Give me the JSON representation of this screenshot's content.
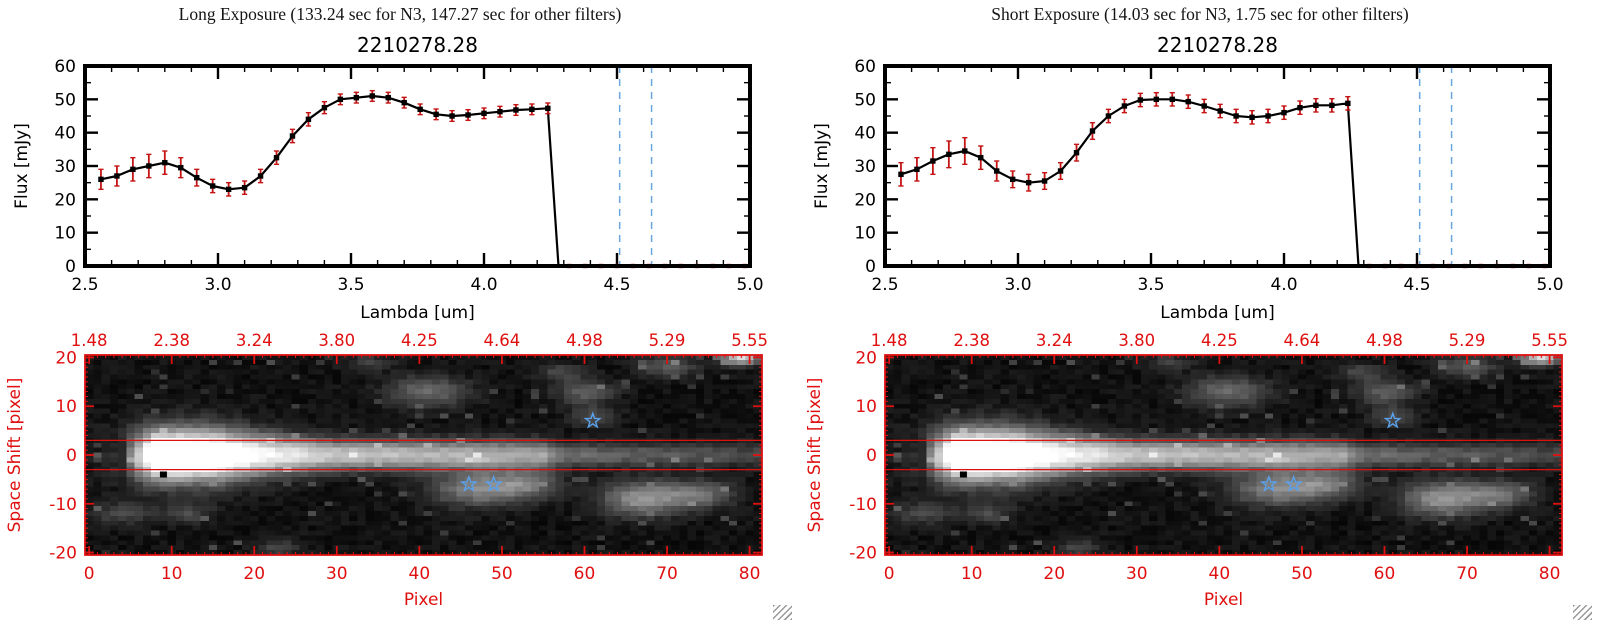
{
  "panels": [
    {
      "header": "Long Exposure (133.24 sec for N3, 147.27 sec for other filters)"
    },
    {
      "header": "Short Exposure (14.03 sec for N3, 1.75 sec for other filters)"
    }
  ],
  "chart_data": [
    {
      "type": "line",
      "panel": "long-exposure-spectrum",
      "title": "2210278.28",
      "xlabel": "Lambda [um]",
      "ylabel": "Flux [mJy]",
      "xlim": [
        2.5,
        5.0
      ],
      "ylim": [
        0,
        60
      ],
      "xticks": [
        2.5,
        3.0,
        3.5,
        4.0,
        4.5,
        5.0
      ],
      "xtick_labels": [
        "2.5",
        "3.0",
        "3.5",
        "4.0",
        "4.5",
        "5.0"
      ],
      "yticks": [
        0,
        10,
        20,
        30,
        40,
        50,
        60
      ],
      "ytick_labels": [
        "0",
        "10",
        "20",
        "30",
        "40",
        "50",
        "60"
      ],
      "x": [
        2.56,
        2.62,
        2.68,
        2.74,
        2.8,
        2.86,
        2.92,
        2.98,
        3.04,
        3.1,
        3.16,
        3.22,
        3.28,
        3.34,
        3.4,
        3.46,
        3.52,
        3.58,
        3.64,
        3.7,
        3.76,
        3.82,
        3.88,
        3.94,
        4.0,
        4.06,
        4.12,
        4.18,
        4.24
      ],
      "y": [
        26,
        27,
        29,
        30,
        31,
        29.5,
        26.5,
        24,
        23,
        23.5,
        27,
        32.5,
        39,
        44,
        47.5,
        50,
        50.5,
        51,
        50.5,
        49,
        47,
        45.5,
        45,
        45.3,
        45.8,
        46.3,
        46.8,
        47,
        47.3
      ],
      "yerr": [
        3,
        3,
        3.5,
        3.5,
        3.5,
        3,
        2.5,
        2,
        2,
        2,
        2,
        2,
        2,
        2,
        1.8,
        1.6,
        1.6,
        1.6,
        1.6,
        1.6,
        1.6,
        1.6,
        1.6,
        1.6,
        1.6,
        1.6,
        1.6,
        1.6,
        1.6
      ],
      "drop_x": 4.28,
      "zero_tail_x": [
        4.32,
        4.38,
        4.44,
        4.5,
        4.56,
        4.62,
        4.68,
        4.74,
        4.8,
        4.86,
        4.92,
        4.98
      ],
      "dashed_vlines_x": [
        4.51,
        4.63
      ],
      "colors": {
        "line": "#000000",
        "error": "#c41414",
        "marker": "#000000",
        "vline": "#6aa6e0",
        "zero": "#d42014"
      }
    },
    {
      "type": "line",
      "panel": "short-exposure-spectrum",
      "title": "2210278.28",
      "xlabel": "Lambda [um]",
      "ylabel": "Flux [mJy]",
      "xlim": [
        2.5,
        5.0
      ],
      "ylim": [
        0,
        60
      ],
      "xticks": [
        2.5,
        3.0,
        3.5,
        4.0,
        4.5,
        5.0
      ],
      "xtick_labels": [
        "2.5",
        "3.0",
        "3.5",
        "4.0",
        "4.5",
        "5.0"
      ],
      "yticks": [
        0,
        10,
        20,
        30,
        40,
        50,
        60
      ],
      "ytick_labels": [
        "0",
        "10",
        "20",
        "30",
        "40",
        "50",
        "60"
      ],
      "x": [
        2.56,
        2.62,
        2.68,
        2.74,
        2.8,
        2.86,
        2.92,
        2.98,
        3.04,
        3.1,
        3.16,
        3.22,
        3.28,
        3.34,
        3.4,
        3.46,
        3.52,
        3.58,
        3.64,
        3.7,
        3.76,
        3.82,
        3.88,
        3.94,
        4.0,
        4.06,
        4.12,
        4.18,
        4.24
      ],
      "y": [
        27.5,
        29,
        31.5,
        33.5,
        34.5,
        32.5,
        28.5,
        26,
        25,
        25.5,
        28.5,
        34,
        40.5,
        45,
        48,
        49.8,
        50,
        50,
        49.3,
        48,
        46.5,
        45,
        44.6,
        45,
        46,
        47.5,
        48.2,
        48.2,
        48.8
      ],
      "yerr": [
        3.5,
        3.5,
        4,
        4,
        4,
        3.5,
        3,
        2.5,
        2.5,
        2.5,
        2.5,
        2.5,
        2.5,
        2,
        2,
        2,
        2,
        2,
        2,
        2,
        2,
        2,
        2,
        2,
        2,
        2,
        2,
        2,
        2
      ],
      "drop_x": 4.28,
      "zero_tail_x": [
        4.32,
        4.38,
        4.44,
        4.5,
        4.56,
        4.62,
        4.68,
        4.74,
        4.8,
        4.86,
        4.92,
        4.98
      ],
      "dashed_vlines_x": [
        4.51,
        4.63
      ],
      "colors": {
        "line": "#000000",
        "error": "#c41414",
        "marker": "#000000",
        "vline": "#6aa6e0",
        "zero": "#d42014"
      }
    },
    {
      "type": "heatmap",
      "panel": "long-exposure-2d-spectral-image",
      "xlabel": "Pixel",
      "ylabel": "Space Shift [pixel]",
      "xlim": [
        0,
        81
      ],
      "ylim": [
        -20,
        20
      ],
      "xticks": [
        0,
        10,
        20,
        30,
        40,
        50,
        60,
        70,
        80
      ],
      "xtick_labels": [
        "0",
        "10",
        "20",
        "30",
        "40",
        "50",
        "60",
        "70",
        "80"
      ],
      "yticks": [
        20,
        10,
        0,
        -10,
        -20
      ],
      "ytick_labels": [
        "20",
        "10",
        "0",
        "-10",
        "-20"
      ],
      "top_axis_labels": [
        "1.48",
        "2.38",
        "3.24",
        "3.80",
        "4.25",
        "4.64",
        "4.98",
        "5.29",
        "5.55"
      ],
      "frame_color": "#e01010",
      "aperture_lines_y": [
        3,
        -3
      ],
      "stars": [
        {
          "x": 61,
          "y": 7
        },
        {
          "x": 46,
          "y": -6
        },
        {
          "x": 49,
          "y": -6
        }
      ],
      "star_color": "#5aa2ee",
      "black_marker": {
        "x": 9,
        "y": -4
      },
      "seed": 12345,
      "trace": {
        "x": [
          0,
          4,
          6,
          8,
          16,
          30,
          55,
          57,
          58,
          81
        ],
        "amp": [
          0,
          0,
          130,
          255,
          255,
          185,
          150,
          98,
          92,
          55
        ],
        "sigma_x": [
          0,
          16,
          30,
          55,
          58,
          81
        ],
        "sigma": [
          3.4,
          3.4,
          2.2,
          2.1,
          1.7,
          1.6
        ]
      },
      "blobs": [
        [
          11,
          0,
          5,
          4.5,
          90
        ],
        [
          41,
          13,
          3.5,
          2.2,
          90
        ],
        [
          60,
          13,
          2.5,
          1.8,
          75
        ],
        [
          61,
          8,
          2,
          1.5,
          60
        ],
        [
          47,
          -7,
          4,
          2.5,
          110
        ],
        [
          53,
          -6,
          3,
          2,
          85
        ],
        [
          67,
          -9,
          3.5,
          2.5,
          130
        ],
        [
          74,
          -8,
          3,
          2,
          90
        ],
        [
          4,
          -12,
          2.5,
          1.5,
          60
        ],
        [
          12,
          -12,
          2,
          1.5,
          55
        ],
        [
          23,
          -19,
          2,
          1.2,
          50
        ],
        [
          34,
          19,
          2,
          1.2,
          45
        ],
        [
          57,
          17,
          2,
          1.2,
          55
        ],
        [
          70,
          18,
          2.5,
          1.5,
          70
        ],
        [
          79,
          20,
          1.6,
          1.1,
          200
        ]
      ]
    },
    {
      "type": "heatmap",
      "panel": "short-exposure-2d-spectral-image",
      "xlabel": "Pixel",
      "ylabel": "Space Shift [pixel]",
      "xlim": [
        0,
        81
      ],
      "ylim": [
        -20,
        20
      ],
      "xticks": [
        0,
        10,
        20,
        30,
        40,
        50,
        60,
        70,
        80
      ],
      "xtick_labels": [
        "0",
        "10",
        "20",
        "30",
        "40",
        "50",
        "60",
        "70",
        "80"
      ],
      "yticks": [
        20,
        10,
        0,
        -10,
        -20
      ],
      "ytick_labels": [
        "20",
        "10",
        "0",
        "-10",
        "-20"
      ],
      "top_axis_labels": [
        "1.48",
        "2.38",
        "3.24",
        "3.80",
        "4.25",
        "4.64",
        "4.98",
        "5.29",
        "5.55"
      ],
      "frame_color": "#e01010",
      "aperture_lines_y": [
        3,
        -3
      ],
      "stars": [
        {
          "x": 61,
          "y": 7
        },
        {
          "x": 46,
          "y": -6
        },
        {
          "x": 49,
          "y": -6
        }
      ],
      "star_color": "#5aa2ee",
      "black_marker": {
        "x": 9,
        "y": -4
      },
      "seed": 12345,
      "trace": {
        "x": [
          0,
          4,
          6,
          8,
          16,
          30,
          55,
          57,
          58,
          81
        ],
        "amp": [
          0,
          0,
          130,
          255,
          255,
          185,
          150,
          98,
          92,
          55
        ],
        "sigma_x": [
          0,
          16,
          30,
          55,
          58,
          81
        ],
        "sigma": [
          3.4,
          3.4,
          2.2,
          2.1,
          1.7,
          1.6
        ]
      },
      "blobs": [
        [
          11,
          0,
          5,
          4.5,
          90
        ],
        [
          41,
          13,
          3.5,
          2.2,
          90
        ],
        [
          60,
          13,
          2.5,
          1.8,
          75
        ],
        [
          61,
          8,
          2,
          1.5,
          60
        ],
        [
          47,
          -7,
          4,
          2.5,
          110
        ],
        [
          53,
          -6,
          3,
          2,
          85
        ],
        [
          67,
          -9,
          3.5,
          2.5,
          130
        ],
        [
          74,
          -8,
          3,
          2,
          90
        ],
        [
          4,
          -12,
          2.5,
          1.5,
          60
        ],
        [
          12,
          -12,
          2,
          1.5,
          55
        ],
        [
          23,
          -19,
          2,
          1.2,
          50
        ],
        [
          34,
          19,
          2,
          1.2,
          45
        ],
        [
          57,
          17,
          2,
          1.2,
          55
        ],
        [
          70,
          18,
          2.5,
          1.5,
          70
        ],
        [
          79,
          20,
          1.6,
          1.1,
          200
        ]
      ]
    }
  ]
}
